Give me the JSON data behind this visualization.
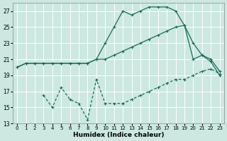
{
  "xlabel": "Humidex (Indice chaleur)",
  "bg_color": "#cce8e0",
  "grid_color": "#ffffff",
  "line_color": "#1a6b5a",
  "xlim": [
    -0.5,
    23.5
  ],
  "ylim": [
    13,
    28.0
  ],
  "yticks": [
    13,
    15,
    17,
    19,
    21,
    23,
    25,
    27
  ],
  "xticks": [
    0,
    1,
    2,
    3,
    4,
    5,
    6,
    7,
    8,
    9,
    10,
    11,
    12,
    13,
    14,
    15,
    16,
    17,
    18,
    19,
    20,
    21,
    22,
    23
  ],
  "line1_x": [
    0,
    1,
    2,
    3,
    4,
    5,
    6,
    7,
    8,
    9,
    10,
    11,
    12,
    13,
    14,
    15,
    16,
    17,
    18,
    19,
    20,
    21,
    22,
    23
  ],
  "line1_y": [
    20.0,
    20.5,
    20.5,
    20.5,
    20.5,
    20.5,
    20.5,
    20.5,
    20.5,
    21.0,
    23.0,
    25.0,
    27.0,
    26.5,
    27.0,
    27.5,
    27.5,
    27.5,
    27.0,
    25.2,
    21.0,
    21.5,
    20.7,
    19.0
  ],
  "line2_x": [
    0,
    1,
    2,
    3,
    4,
    5,
    6,
    7,
    8,
    9,
    10,
    11,
    12,
    13,
    14,
    15,
    16,
    17,
    18,
    19,
    20,
    21,
    22,
    23
  ],
  "line2_y": [
    20.0,
    20.5,
    20.5,
    20.5,
    20.5,
    20.5,
    20.5,
    20.5,
    20.5,
    21.0,
    21.0,
    21.5,
    22.0,
    22.5,
    23.0,
    23.5,
    24.0,
    24.5,
    25.0,
    25.2,
    23.0,
    21.5,
    21.0,
    19.5
  ],
  "line3_x": [
    3,
    4,
    5,
    6,
    7,
    8,
    9,
    10,
    11,
    12,
    13,
    14,
    15,
    16,
    17,
    18,
    19,
    20,
    21,
    22,
    23
  ],
  "line3_y": [
    16.5,
    15.0,
    17.5,
    16.0,
    15.5,
    13.5,
    18.5,
    15.5,
    15.5,
    15.5,
    16.0,
    16.5,
    17.0,
    17.5,
    18.0,
    18.5,
    18.5,
    19.0,
    19.5,
    19.8,
    19.2
  ]
}
